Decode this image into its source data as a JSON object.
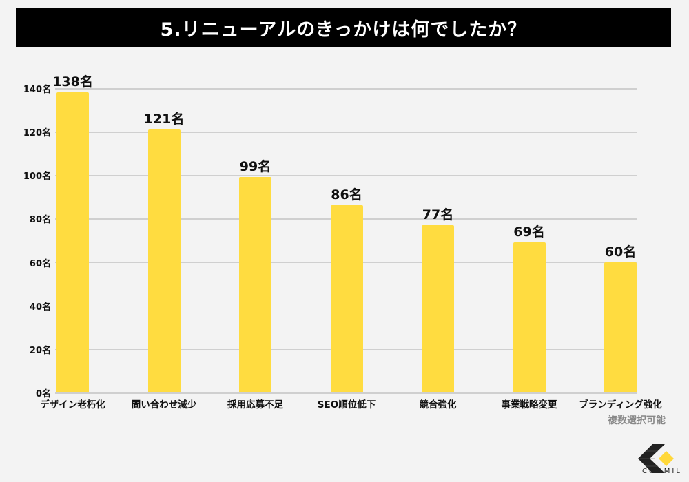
{
  "title": "5.リニューアルのきっかけは何でしたか？",
  "note": "複数選択可能",
  "logo": {
    "name": "COOMIL",
    "colors": {
      "dark": "#222222",
      "accent": "#ffd83a"
    }
  },
  "colors": {
    "bar": "#ffdc40",
    "background": "#f3f3f3",
    "grid": "#cfcfcf",
    "title_bg": "#000000",
    "title_fg": "#ffffff"
  },
  "chart_data": {
    "type": "bar",
    "title": "5.リニューアルのきっかけは何でしたか？",
    "categories": [
      "デザイン老朽化",
      "問い合わせ減少",
      "採用応募不足",
      "SEO順位低下",
      "競合強化",
      "事業戦略変更",
      "ブランディング強化"
    ],
    "values": [
      138,
      121,
      99,
      86,
      77,
      69,
      60
    ],
    "value_labels": [
      "138名",
      "121名",
      "99名",
      "86名",
      "77名",
      "69名",
      "60名"
    ],
    "unit": "名",
    "xlabel": "",
    "ylabel": "",
    "ylim": [
      0,
      140
    ],
    "yticks": [
      0,
      20,
      40,
      60,
      80,
      100,
      120,
      140
    ],
    "ytick_labels": [
      "0名",
      "20名",
      "40名",
      "60名",
      "80名",
      "100名",
      "120名",
      "140名"
    ],
    "grid": true,
    "legend": null,
    "annotations": [
      "複数選択可能"
    ]
  }
}
